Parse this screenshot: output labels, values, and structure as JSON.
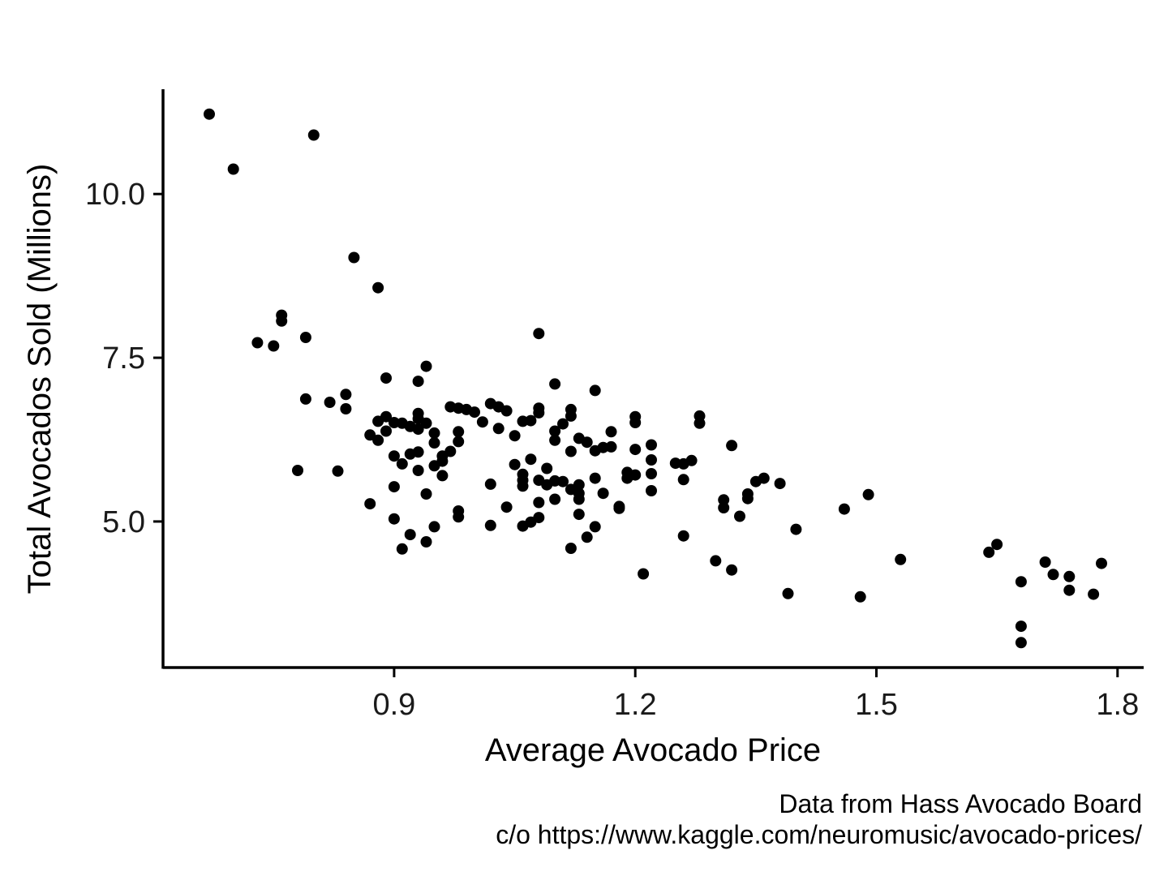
{
  "chart_data": {
    "type": "scatter",
    "title": "",
    "xlabel": "Average Avocado Price",
    "ylabel": "Total Avocados Sold (Millions)",
    "xlim": [
      0.6125,
      1.8325
    ],
    "ylim": [
      2.77,
      11.6
    ],
    "xticks": [
      0.9,
      1.2,
      1.5,
      1.8
    ],
    "xtick_labels": [
      "0.9",
      "1.2",
      "1.5",
      "1.8"
    ],
    "yticks": [
      5.0,
      7.5,
      10.0
    ],
    "ytick_labels": [
      "5.0",
      "7.5",
      "10.0"
    ],
    "grid": false,
    "point_color": "#000000",
    "points": [
      [
        0.67,
        11.22
      ],
      [
        0.7,
        10.38
      ],
      [
        0.73,
        7.73
      ],
      [
        0.75,
        7.68
      ],
      [
        0.76,
        8.15
      ],
      [
        0.76,
        8.06
      ],
      [
        0.78,
        5.78
      ],
      [
        0.79,
        7.81
      ],
      [
        0.79,
        6.87
      ],
      [
        0.8,
        10.9
      ],
      [
        0.82,
        6.82
      ],
      [
        0.83,
        5.77
      ],
      [
        0.84,
        6.94
      ],
      [
        0.84,
        6.72
      ],
      [
        0.85,
        9.03
      ],
      [
        0.87,
        6.32
      ],
      [
        0.87,
        5.27
      ],
      [
        0.88,
        8.57
      ],
      [
        0.88,
        6.53
      ],
      [
        0.88,
        6.24
      ],
      [
        0.89,
        7.19
      ],
      [
        0.89,
        6.6
      ],
      [
        0.89,
        6.38
      ],
      [
        0.9,
        6.51
      ],
      [
        0.9,
        6.0
      ],
      [
        0.9,
        5.53
      ],
      [
        0.9,
        5.04
      ],
      [
        0.91,
        6.5
      ],
      [
        0.91,
        5.88
      ],
      [
        0.91,
        4.58
      ],
      [
        0.92,
        6.45
      ],
      [
        0.92,
        6.03
      ],
      [
        0.92,
        4.8
      ],
      [
        0.93,
        7.14
      ],
      [
        0.93,
        6.65
      ],
      [
        0.93,
        6.57
      ],
      [
        0.93,
        6.41
      ],
      [
        0.93,
        6.06
      ],
      [
        0.93,
        5.78
      ],
      [
        0.94,
        7.37
      ],
      [
        0.94,
        6.5
      ],
      [
        0.94,
        5.42
      ],
      [
        0.94,
        4.69
      ],
      [
        0.95,
        6.35
      ],
      [
        0.95,
        6.2
      ],
      [
        0.95,
        5.85
      ],
      [
        0.95,
        4.92
      ],
      [
        0.96,
        6.0
      ],
      [
        0.96,
        5.92
      ],
      [
        0.96,
        5.7
      ],
      [
        0.97,
        6.75
      ],
      [
        0.97,
        6.07
      ],
      [
        0.98,
        6.73
      ],
      [
        0.98,
        6.37
      ],
      [
        0.98,
        6.22
      ],
      [
        0.98,
        5.16
      ],
      [
        0.98,
        5.07
      ],
      [
        0.99,
        6.71
      ],
      [
        1.0,
        6.67
      ],
      [
        1.01,
        6.52
      ],
      [
        1.02,
        6.8
      ],
      [
        1.02,
        5.57
      ],
      [
        1.02,
        4.94
      ],
      [
        1.03,
        6.75
      ],
      [
        1.03,
        6.42
      ],
      [
        1.04,
        6.69
      ],
      [
        1.04,
        5.22
      ],
      [
        1.05,
        6.31
      ],
      [
        1.05,
        5.87
      ],
      [
        1.06,
        6.53
      ],
      [
        1.06,
        5.72
      ],
      [
        1.06,
        5.63
      ],
      [
        1.06,
        5.54
      ],
      [
        1.06,
        4.93
      ],
      [
        1.07,
        6.54
      ],
      [
        1.07,
        5.95
      ],
      [
        1.07,
        4.99
      ],
      [
        1.08,
        7.87
      ],
      [
        1.08,
        6.73
      ],
      [
        1.08,
        6.66
      ],
      [
        1.08,
        5.63
      ],
      [
        1.08,
        5.29
      ],
      [
        1.08,
        5.06
      ],
      [
        1.09,
        5.81
      ],
      [
        1.09,
        5.56
      ],
      [
        1.1,
        7.1
      ],
      [
        1.1,
        6.38
      ],
      [
        1.1,
        6.24
      ],
      [
        1.1,
        5.62
      ],
      [
        1.1,
        5.34
      ],
      [
        1.11,
        6.49
      ],
      [
        1.11,
        5.61
      ],
      [
        1.12,
        6.71
      ],
      [
        1.12,
        6.61
      ],
      [
        1.12,
        6.07
      ],
      [
        1.12,
        5.49
      ],
      [
        1.12,
        4.59
      ],
      [
        1.13,
        6.27
      ],
      [
        1.13,
        5.56
      ],
      [
        1.13,
        5.43
      ],
      [
        1.13,
        5.34
      ],
      [
        1.13,
        5.11
      ],
      [
        1.14,
        6.21
      ],
      [
        1.14,
        4.76
      ],
      [
        1.15,
        7.0
      ],
      [
        1.15,
        6.08
      ],
      [
        1.15,
        5.66
      ],
      [
        1.15,
        4.92
      ],
      [
        1.16,
        6.13
      ],
      [
        1.16,
        5.43
      ],
      [
        1.17,
        6.37
      ],
      [
        1.17,
        6.14
      ],
      [
        1.18,
        5.23
      ],
      [
        1.18,
        5.2
      ],
      [
        1.19,
        5.75
      ],
      [
        1.19,
        5.66
      ],
      [
        1.2,
        6.6
      ],
      [
        1.2,
        6.51
      ],
      [
        1.2,
        6.1
      ],
      [
        1.2,
        5.71
      ],
      [
        1.21,
        4.2
      ],
      [
        1.22,
        6.17
      ],
      [
        1.22,
        5.94
      ],
      [
        1.22,
        5.73
      ],
      [
        1.22,
        5.47
      ],
      [
        1.25,
        5.89
      ],
      [
        1.26,
        5.88
      ],
      [
        1.26,
        5.64
      ],
      [
        1.26,
        4.78
      ],
      [
        1.27,
        5.93
      ],
      [
        1.28,
        6.61
      ],
      [
        1.28,
        6.5
      ],
      [
        1.3,
        4.4
      ],
      [
        1.31,
        5.33
      ],
      [
        1.31,
        5.21
      ],
      [
        1.32,
        6.16
      ],
      [
        1.32,
        4.26
      ],
      [
        1.33,
        5.08
      ],
      [
        1.34,
        5.42
      ],
      [
        1.34,
        5.35
      ],
      [
        1.35,
        5.61
      ],
      [
        1.36,
        5.66
      ],
      [
        1.38,
        5.58
      ],
      [
        1.39,
        3.9
      ],
      [
        1.4,
        4.88
      ],
      [
        1.46,
        5.19
      ],
      [
        1.48,
        3.85
      ],
      [
        1.49,
        5.41
      ],
      [
        1.53,
        4.42
      ],
      [
        1.64,
        4.53
      ],
      [
        1.65,
        4.65
      ],
      [
        1.68,
        4.08
      ],
      [
        1.68,
        3.4
      ],
      [
        1.68,
        3.15
      ],
      [
        1.71,
        4.38
      ],
      [
        1.72,
        4.19
      ],
      [
        1.74,
        4.16
      ],
      [
        1.74,
        3.95
      ],
      [
        1.77,
        3.89
      ],
      [
        1.78,
        4.36
      ]
    ],
    "caption": [
      "Data from Hass Avocado Board",
      "c/o https://www.kaggle.com/neuromusic/avocado-prices/"
    ]
  }
}
